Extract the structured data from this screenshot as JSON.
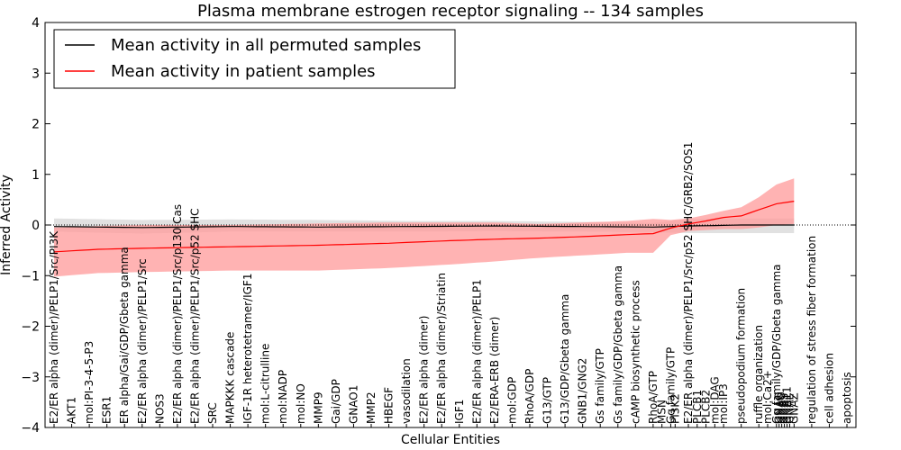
{
  "chart_data": {
    "type": "line",
    "title": "Plasma membrane estrogen receptor signaling -- 134 samples",
    "xlabel": "Cellular Entities",
    "ylabel": "Inferred Activity",
    "ylim": [
      -4,
      4
    ],
    "yticks": [
      -4,
      -3,
      -2,
      -1,
      0,
      1,
      2,
      3,
      4
    ],
    "legend_placement": "top-left",
    "grid": false,
    "reference_line": 0,
    "colors": {
      "permuted": "#000000",
      "patient": "#ff0000",
      "permuted_band": "#c8c8c8",
      "patient_band": "#ff9999"
    },
    "series": [
      {
        "name": "Mean activity in all permuted samples",
        "band": [
          [
            -0.13,
            0.13
          ],
          [
            -0.28,
            0.16
          ]
        ],
        "keypoints_x": [
          0,
          10,
          20,
          30,
          40,
          50,
          60,
          68,
          72,
          78,
          84
        ],
        "keypoints_mean": [
          -0.03,
          -0.05,
          -0.03,
          -0.04,
          -0.03,
          -0.02,
          -0.03,
          -0.04,
          -0.02,
          0.0,
          0.0
        ],
        "keypoints_low": [
          -0.13,
          -0.17,
          -0.13,
          -0.13,
          -0.13,
          -0.12,
          -0.13,
          -0.14,
          -0.16,
          -0.16,
          -0.16
        ],
        "keypoints_high": [
          0.13,
          0.1,
          0.11,
          0.1,
          0.08,
          0.08,
          0.06,
          0.04,
          0.12,
          0.13,
          0.13
        ]
      },
      {
        "name": "Mean activity in patient samples",
        "keypoints_x": [
          0,
          5,
          10,
          20,
          30,
          38,
          45,
          50,
          55,
          60,
          65,
          68,
          70,
          72,
          74,
          76,
          78,
          80,
          82,
          84
        ],
        "keypoints_mean": [
          -0.53,
          -0.48,
          -0.46,
          -0.43,
          -0.4,
          -0.36,
          -0.31,
          -0.28,
          -0.26,
          -0.23,
          -0.19,
          -0.17,
          -0.06,
          0.02,
          0.08,
          0.15,
          0.18,
          0.3,
          0.42,
          0.47
        ],
        "keypoints_low": [
          -1.02,
          -0.95,
          -0.93,
          -0.9,
          -0.9,
          -0.85,
          -0.78,
          -0.72,
          -0.65,
          -0.6,
          -0.55,
          -0.55,
          -0.2,
          -0.12,
          -0.1,
          -0.08,
          -0.08,
          -0.05,
          0.0,
          0.02
        ],
        "keypoints_high": [
          -0.05,
          -0.02,
          0.0,
          0.0,
          0.03,
          0.05,
          0.05,
          0.05,
          0.02,
          0.05,
          0.08,
          0.12,
          0.1,
          0.13,
          0.2,
          0.28,
          0.35,
          0.55,
          0.8,
          0.92
        ]
      }
    ],
    "n_points": 85,
    "category_labels": [
      {
        "i": 0,
        "label": "E2/ER alpha (dimer)/PELP1/Src/PI3K"
      },
      {
        "i": 2,
        "label": "AKT1"
      },
      {
        "i": 4,
        "label": "mol:PI-3-4-5-P3"
      },
      {
        "i": 6,
        "label": "ESR1"
      },
      {
        "i": 8,
        "label": "ER alpha/Gai/GDP/Gbeta gamma"
      },
      {
        "i": 10,
        "label": "E2/ER alpha (dimer)/PELP1/Src"
      },
      {
        "i": 12,
        "label": "NOS3"
      },
      {
        "i": 14,
        "label": "E2/ER alpha (dimer)/PELP1/Src/p130 Cas"
      },
      {
        "i": 16,
        "label": "E2/ER alpha (dimer)/PELP1/Src/p52 SHC"
      },
      {
        "i": 18,
        "label": "SRC"
      },
      {
        "i": 20,
        "label": "MAPKKK cascade"
      },
      {
        "i": 22,
        "label": "IGF-1R heterotetramer/IGF1"
      },
      {
        "i": 24,
        "label": "mol:L-citrulline"
      },
      {
        "i": 26,
        "label": "mol:NADP"
      },
      {
        "i": 28,
        "label": "mol:NO"
      },
      {
        "i": 30,
        "label": "MMP9"
      },
      {
        "i": 32,
        "label": "Gai/GDP"
      },
      {
        "i": 34,
        "label": "GNAO1"
      },
      {
        "i": 36,
        "label": "MMP2"
      },
      {
        "i": 38,
        "label": "HBEGF"
      },
      {
        "i": 40,
        "label": "vasodilation"
      },
      {
        "i": 42,
        "label": "E2/ER alpha (dimer)"
      },
      {
        "i": 44,
        "label": "E2/ER alpha (dimer)/Striatin"
      },
      {
        "i": 46,
        "label": "IGF1"
      },
      {
        "i": 48,
        "label": "E2/ER alpha (dimer)/PELP1"
      },
      {
        "i": 50,
        "label": "E2/ERA-ERB (dimer)"
      },
      {
        "i": 52,
        "label": "mol:GDP"
      },
      {
        "i": 54,
        "label": "RhoA/GDP"
      },
      {
        "i": 56,
        "label": "G13/GTP"
      },
      {
        "i": 58,
        "label": "G13/GDP/Gbeta gamma"
      },
      {
        "i": 60,
        "label": "GNB1/GNG2"
      },
      {
        "i": 62,
        "label": "Gs family/GTP"
      },
      {
        "i": 64,
        "label": "Gs family/GDP/Gbeta gamma"
      },
      {
        "i": 66,
        "label": "cAMP biosynthetic process"
      },
      {
        "i": 68,
        "label": "RhoA/GTP"
      },
      {
        "i": 69,
        "label": "MSN"
      },
      {
        "i": 70,
        "label": "Gq family/GTP"
      },
      {
        "i": 70.5,
        "label": "PI3K2"
      },
      {
        "i": 72,
        "label": "E2/ER alpha (dimer)/PELP1/Src/p52 SHC/GRB2/SOS1"
      },
      {
        "i": 73,
        "label": "PLCB1"
      },
      {
        "i": 74,
        "label": "PLCB2"
      },
      {
        "i": 75,
        "label": "mol:DAG"
      },
      {
        "i": 76,
        "label": "mol:IP3"
      },
      {
        "i": 78,
        "label": "pseudopodium formation"
      },
      {
        "i": 80,
        "label": "ruffle organization"
      },
      {
        "i": 81,
        "label": "mol:Ca2+"
      },
      {
        "i": 82,
        "label": "Gq family/GDP/Gbeta gamma"
      },
      {
        "i": 82.3,
        "label": "GNAQ"
      },
      {
        "i": 82.6,
        "label": "GNAO"
      },
      {
        "i": 82.9,
        "label": "GNAS"
      },
      {
        "i": 83.2,
        "label": "GNA11"
      },
      {
        "i": 83.5,
        "label": "GNAL"
      },
      {
        "i": 84,
        "label": "GNAZ"
      },
      {
        "i": 86,
        "label": "regulation of stress fiber formation"
      },
      {
        "i": 88,
        "label": "cell adhesion"
      },
      {
        "i": 90,
        "label": "apoptosis"
      }
    ]
  }
}
